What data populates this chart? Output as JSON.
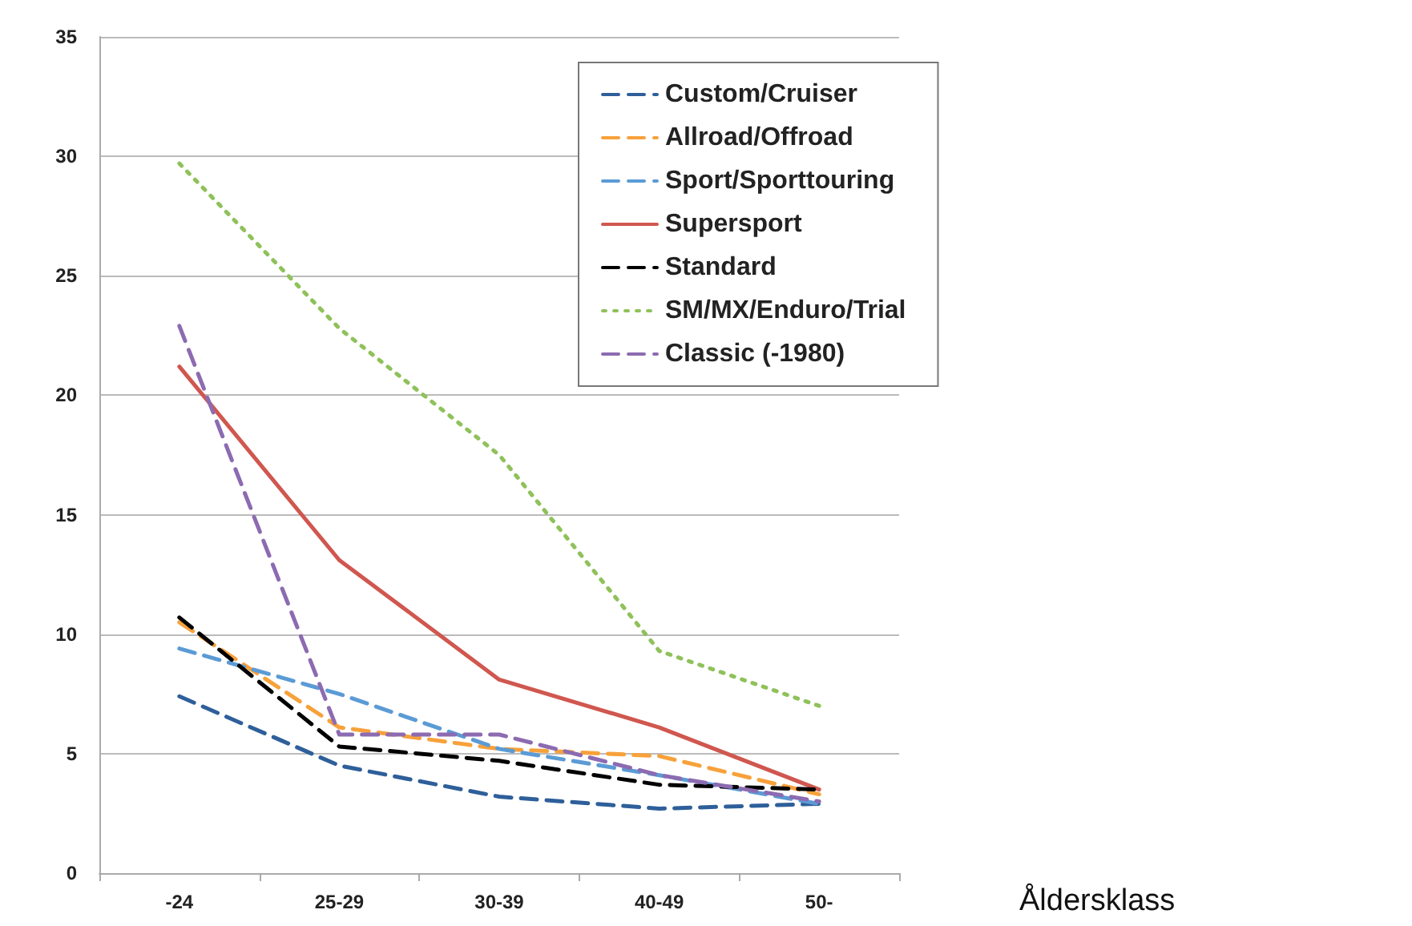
{
  "chart_data": {
    "type": "line",
    "xlabel": "Åldersklass",
    "categories": [
      "-24",
      "25-29",
      "30-39",
      "40-49",
      "50-"
    ],
    "ylim": [
      0,
      35
    ],
    "yticks": [
      0,
      5,
      10,
      15,
      20,
      25,
      30,
      35
    ],
    "grid": "y",
    "legend": "top right",
    "marker": "none",
    "series": [
      {
        "name": "Custom/Cruiser",
        "color": "#2e5f9a",
        "line_style": "dashed",
        "values": [
          7.4,
          4.5,
          3.2,
          2.7,
          2.9
        ]
      },
      {
        "name": "Allroad/Offroad",
        "color": "#f7a13b",
        "line_style": "dashed",
        "values": [
          10.5,
          6.1,
          5.2,
          4.9,
          3.3
        ]
      },
      {
        "name": "Sport/Sporttouring",
        "color": "#5b9bd5",
        "line_style": "dashed",
        "values": [
          9.4,
          7.5,
          5.2,
          4.1,
          2.9
        ]
      },
      {
        "name": "Supersport",
        "color": "#d0574f",
        "line_style": "solid",
        "values": [
          21.2,
          13.1,
          8.1,
          6.1,
          3.5
        ]
      },
      {
        "name": "Standard",
        "color": "#000000",
        "line_style": "dashed",
        "values": [
          10.7,
          5.3,
          4.7,
          3.7,
          3.5
        ]
      },
      {
        "name": "SM/MX/Enduro/Trial",
        "color": "#8fc15a",
        "line_style": "dotted",
        "values": [
          29.7,
          22.8,
          17.5,
          9.3,
          7.0
        ]
      },
      {
        "name": "Classic (-1980)",
        "color": "#8c6bb1",
        "line_style": "dashed",
        "values": [
          22.9,
          5.8,
          5.8,
          4.1,
          3.0
        ]
      }
    ]
  }
}
